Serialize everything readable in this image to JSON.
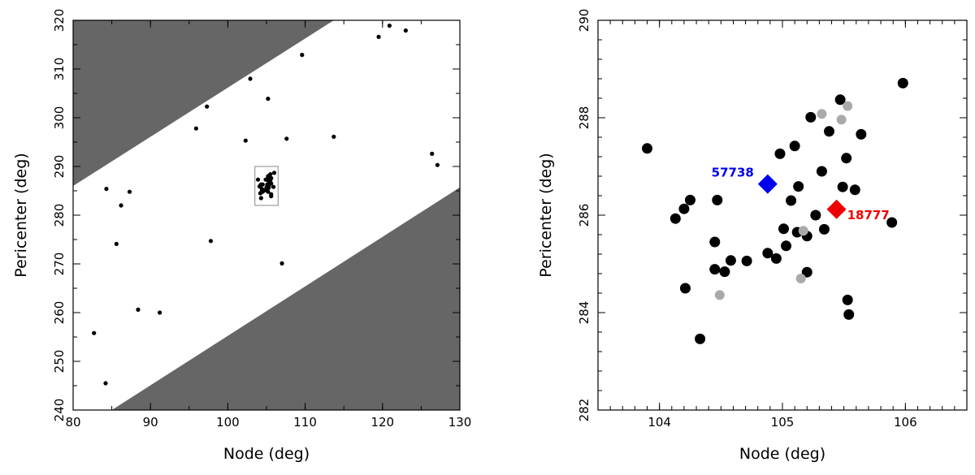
{
  "chart_data": [
    {
      "type": "scatter",
      "title": "",
      "xlabel": "Node (deg)",
      "ylabel": "Pericenter (deg)",
      "xlim": [
        80,
        130
      ],
      "ylim": [
        240,
        320
      ],
      "xticks": [
        80,
        90,
        100,
        110,
        120,
        130
      ],
      "yticks": [
        240,
        250,
        260,
        270,
        280,
        290,
        300,
        310,
        320
      ],
      "shaded_regions": [
        {
          "name": "upper-excluded",
          "color": "#666666",
          "polygon": [
            [
              80,
              286
            ],
            [
              80,
              320
            ],
            [
              113.7,
              320
            ]
          ]
        },
        {
          "name": "lower-excluded",
          "color": "#666666",
          "polygon": [
            [
              85,
              240
            ],
            [
              130,
              240
            ],
            [
              130,
              285.7
            ]
          ]
        }
      ],
      "inset_box": {
        "x": [
          103.5,
          106.5
        ],
        "y": [
          282,
          290
        ]
      },
      "series": [
        {
          "color": "#000000",
          "points": [
            [
              82.7,
              255.8
            ],
            [
              84.2,
              245.5
            ],
            [
              84.3,
              285.4
            ],
            [
              85.6,
              274.1
            ],
            [
              86.2,
              282.0
            ],
            [
              87.3,
              284.8
            ],
            [
              88.4,
              260.6
            ],
            [
              91.2,
              260.0
            ],
            [
              95.9,
              297.8
            ],
            [
              97.3,
              302.3
            ],
            [
              97.8,
              274.7
            ],
            [
              102.3,
              295.3
            ],
            [
              102.9,
              308.0
            ],
            [
              105.2,
              303.9
            ],
            [
              107.0,
              270.1
            ],
            [
              107.6,
              295.7
            ],
            [
              109.6,
              312.9
            ],
            [
              113.7,
              296.1
            ],
            [
              119.5,
              316.6
            ],
            [
              120.9,
              318.9
            ],
            [
              123.0,
              317.9
            ],
            [
              126.4,
              292.6
            ],
            [
              127.1,
              290.3
            ],
            [
              103.9,
              287.3
            ],
            [
              104.1,
              285.9
            ],
            [
              104.2,
              286.1
            ],
            [
              104.3,
              286.3
            ],
            [
              104.5,
              286.3
            ],
            [
              104.4,
              285.4
            ],
            [
              104.4,
              284.9
            ],
            [
              104.5,
              284.8
            ],
            [
              104.6,
              285.1
            ],
            [
              104.7,
              285.1
            ],
            [
              104.9,
              285.2
            ],
            [
              105.0,
              285.7
            ],
            [
              105.0,
              285.1
            ],
            [
              105.0,
              285.3
            ],
            [
              105.1,
              286.3
            ],
            [
              105.1,
              285.7
            ],
            [
              105.2,
              285.5
            ],
            [
              105.3,
              286.0
            ],
            [
              105.3,
              286.9
            ],
            [
              105.3,
              285.7
            ],
            [
              105.1,
              287.4
            ],
            [
              104.9,
              287.3
            ],
            [
              105.4,
              287.7
            ],
            [
              105.2,
              288.0
            ],
            [
              105.5,
              288.4
            ],
            [
              105.5,
              287.2
            ],
            [
              105.5,
              286.6
            ],
            [
              105.6,
              286.5
            ],
            [
              105.6,
              287.6
            ],
            [
              105.9,
              285.8
            ],
            [
              106.0,
              288.7
            ],
            [
              105.6,
              284.3
            ],
            [
              105.6,
              283.9
            ],
            [
              104.2,
              284.5
            ],
            [
              104.3,
              283.5
            ],
            [
              105.2,
              284.8
            ]
          ]
        }
      ]
    },
    {
      "type": "scatter",
      "title": "",
      "xlabel": "Node (deg)",
      "ylabel": "Pericenter (deg)",
      "xlim": [
        103.5,
        106.5
      ],
      "ylim": [
        282,
        290
      ],
      "xticks": [
        104,
        105,
        106
      ],
      "yticks": [
        282,
        284,
        286,
        288,
        290
      ],
      "series": [
        {
          "color": "#000000",
          "points": [
            [
              103.9,
              287.37
            ],
            [
              104.13,
              285.93
            ],
            [
              104.2,
              286.13
            ],
            [
              104.25,
              286.31
            ],
            [
              104.47,
              286.31
            ],
            [
              104.45,
              285.45
            ],
            [
              104.45,
              284.89
            ],
            [
              104.53,
              284.84
            ],
            [
              104.58,
              285.07
            ],
            [
              104.71,
              285.06
            ],
            [
              104.88,
              285.22
            ],
            [
              104.95,
              285.11
            ],
            [
              104.98,
              287.26
            ],
            [
              105.01,
              285.72
            ],
            [
              105.03,
              285.37
            ],
            [
              105.07,
              286.3
            ],
            [
              105.1,
              287.42
            ],
            [
              105.12,
              285.65
            ],
            [
              105.13,
              286.59
            ],
            [
              105.2,
              285.57
            ],
            [
              105.2,
              284.83
            ],
            [
              105.23,
              288.01
            ],
            [
              105.27,
              286.0
            ],
            [
              105.32,
              286.9
            ],
            [
              105.34,
              285.71
            ],
            [
              105.38,
              287.72
            ],
            [
              105.47,
              288.37
            ],
            [
              105.49,
              286.58
            ],
            [
              105.52,
              287.17
            ],
            [
              105.53,
              284.26
            ],
            [
              105.54,
              283.96
            ],
            [
              105.59,
              286.52
            ],
            [
              105.64,
              287.66
            ],
            [
              105.89,
              285.85
            ],
            [
              105.98,
              288.71
            ],
            [
              104.21,
              284.5
            ],
            [
              104.33,
              283.46
            ]
          ]
        },
        {
          "color": "#aaaaaa",
          "points": [
            [
              105.32,
              288.08
            ],
            [
              105.53,
              288.24
            ],
            [
              105.48,
              287.96
            ],
            [
              105.17,
              285.68
            ],
            [
              105.15,
              284.7
            ],
            [
              104.49,
              284.36
            ]
          ]
        }
      ],
      "annotations": [
        {
          "label": "57738",
          "x": 104.88,
          "y": 286.64,
          "color": "#0000ee",
          "marker": "diamond"
        },
        {
          "label": "18777",
          "x": 105.44,
          "y": 286.12,
          "color": "#ee0000",
          "marker": "diamond"
        }
      ]
    }
  ]
}
